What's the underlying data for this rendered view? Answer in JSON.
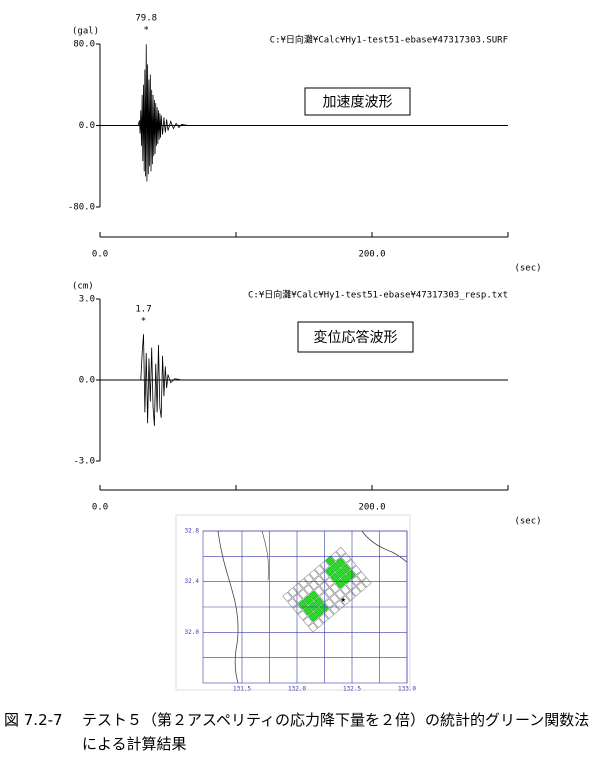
{
  "chart_data": [
    {
      "type": "line",
      "y_label": "(gal)",
      "x_label": "(sec)",
      "source": "C:¥日向灘¥Calc¥Hy1-test51-ebase¥47317303.SURF",
      "title": "加速度波形",
      "x": [
        0,
        28,
        29,
        29.5,
        30,
        30.5,
        31,
        31.5,
        32,
        32.5,
        33,
        33.5,
        34,
        34.5,
        35,
        35.5,
        36,
        36.5,
        37,
        37.5,
        38,
        38.5,
        39,
        39.5,
        40,
        40.5,
        41,
        41.5,
        42,
        42.5,
        43,
        43.5,
        44,
        44.5,
        45,
        46,
        47,
        48,
        49,
        50,
        52,
        54,
        56,
        58,
        60,
        65,
        300
      ],
      "values": [
        0,
        0,
        5,
        -8,
        15,
        -20,
        30,
        -35,
        40,
        -45,
        55,
        -50,
        79.8,
        -55,
        60,
        -48,
        45,
        -40,
        50,
        -45,
        35,
        -38,
        30,
        -30,
        25,
        -28,
        22,
        -20,
        18,
        -18,
        15,
        -14,
        12,
        -12,
        10,
        -9,
        8,
        -7,
        6,
        -5,
        4,
        -3,
        2,
        -2,
        1,
        0,
        0
      ],
      "color": "#000000",
      "peak": {
        "x": 34,
        "value": 79.8
      },
      "xlim": [
        0,
        300
      ],
      "xticks": [
        {
          "value": 0,
          "label": "0.0"
        },
        {
          "value": 200,
          "label": "200.0"
        }
      ],
      "xminor_ticks": [
        100,
        300
      ],
      "ylim": [
        -80,
        80
      ],
      "yticks": [
        {
          "value": 80,
          "label": "80.0"
        },
        {
          "value": 0,
          "label": "0.0"
        },
        {
          "value": -80,
          "label": "-80.0"
        }
      ]
    },
    {
      "type": "line",
      "y_label": "(cm)",
      "x_label": "(sec)",
      "source": "C:¥日向灘¥Calc¥Hy1-test51-ebase¥47317303_resp.txt",
      "title": "変位応答波形",
      "x": [
        0,
        30,
        31,
        32,
        33,
        34,
        35,
        36,
        37,
        38,
        39,
        40,
        41,
        42,
        43,
        44,
        45,
        46,
        47,
        48,
        49,
        50,
        52,
        55,
        60,
        300
      ],
      "values": [
        0,
        0,
        1.0,
        1.7,
        -1.2,
        1.0,
        -1.6,
        0.8,
        -0.8,
        1.2,
        -1.0,
        -1.7,
        0.6,
        -1.2,
        1.3,
        -1.0,
        -1.4,
        0.9,
        -0.6,
        0.5,
        -0.3,
        0.2,
        -0.1,
        0.05,
        0,
        0
      ],
      "color": "#000000",
      "peak": {
        "x": 32,
        "value": 1.7
      },
      "xlim": [
        0,
        300
      ],
      "xticks": [
        {
          "value": 0,
          "label": "0.0"
        },
        {
          "value": 200,
          "label": "200.0"
        }
      ],
      "xminor_ticks": [
        100,
        300
      ],
      "ylim": [
        -3,
        3
      ],
      "yticks": [
        {
          "value": 3,
          "label": "3.0"
        },
        {
          "value": 0,
          "label": "0.0"
        },
        {
          "value": -3,
          "label": "-3.0"
        }
      ]
    },
    {
      "type": "map",
      "xlim": [
        131.2,
        133.0
      ],
      "xticks": [
        131.5,
        {
          "value": 132,
          "label": "132.0"
        },
        132.5,
        {
          "value": 133,
          "label": "133.0"
        }
      ],
      "xgrid": [
        131.5,
        131.75,
        132,
        132.25,
        132.5,
        132.75,
        133
      ],
      "ylim": [
        31.6,
        32.8
      ],
      "yticks": [
        {
          "value": 32,
          "label": "32.0"
        },
        32.4,
        32.8
      ],
      "ygrid": [
        31.8,
        32,
        32.2,
        32.4,
        32.6,
        32.8
      ],
      "epicenter": {
        "x": 132.42,
        "y": 32.26
      }
    }
  ],
  "caption": {
    "label": "図 7.2-7",
    "text": "テスト５（第２アスペリティの応力降下量を２倍）の統計的グリーン関数法による計算結果"
  }
}
